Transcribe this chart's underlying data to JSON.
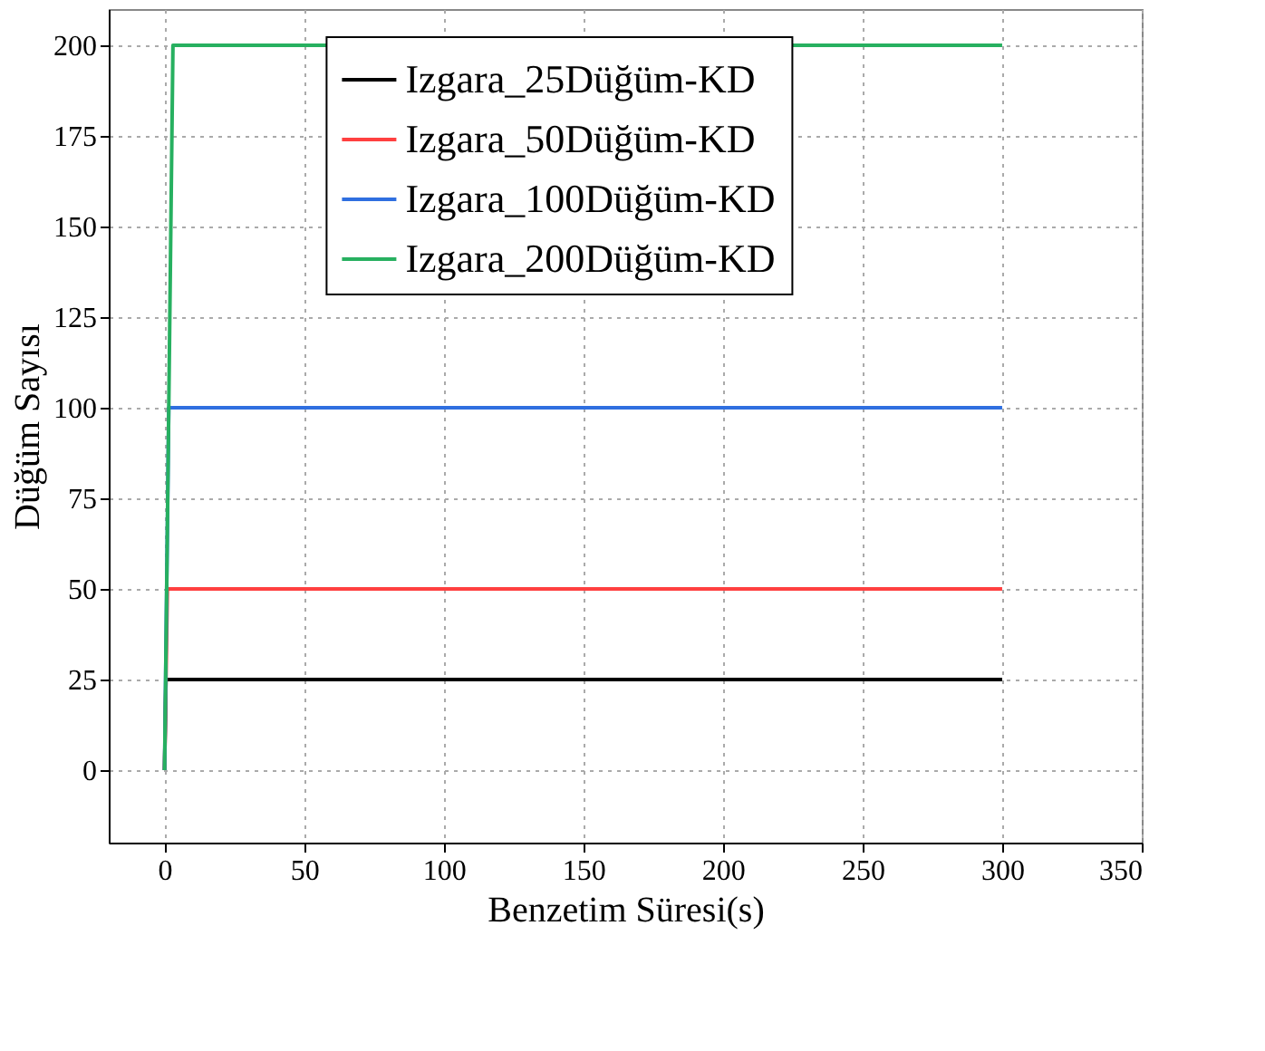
{
  "chart_data": {
    "type": "line",
    "xlabel": "Benzetim Süresi(s)",
    "ylabel": "Düğüm Sayısı",
    "xlim": [
      -20,
      350
    ],
    "xticks": [
      0,
      50,
      100,
      150,
      200,
      250,
      300,
      350
    ],
    "ylim": [
      -20,
      210
    ],
    "yticks": [
      0,
      25,
      50,
      75,
      100,
      125,
      150,
      175,
      200
    ],
    "grid": true,
    "legend": "top",
    "line_style": "solid",
    "marker": "none",
    "series": [
      {
        "name": "Izgara_25Düğüm-KD",
        "color": "#000000",
        "x": [
          0,
          0.5,
          300
        ],
        "values": [
          0,
          25,
          25
        ]
      },
      {
        "name": "Izgara_50Düğüm-KD",
        "color": "#ff4040",
        "x": [
          0,
          1,
          300
        ],
        "values": [
          0,
          50,
          50
        ]
      },
      {
        "name": "Izgara_100Düğüm-KD",
        "color": "#2f6fe0",
        "x": [
          0,
          1.5,
          300
        ],
        "values": [
          0,
          100,
          100
        ]
      },
      {
        "name": "Izgara_200Düğüm-KD",
        "color": "#27b060",
        "x": [
          0,
          3,
          300
        ],
        "values": [
          0,
          200,
          200
        ]
      }
    ]
  }
}
